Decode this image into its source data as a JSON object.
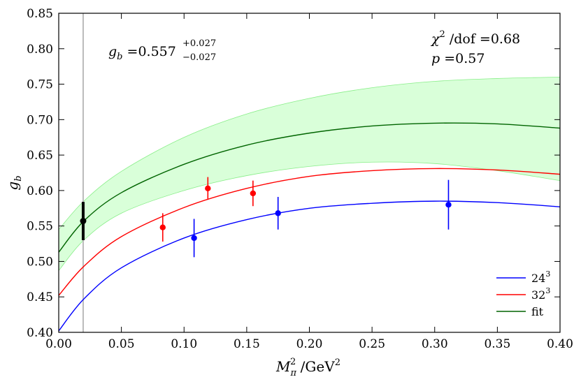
{
  "chart_data": {
    "type": "scatter",
    "xlabel": "M_π² /GeV²",
    "xlabel_parts": {
      "symbol": "M",
      "sub": "π",
      "sup": "2",
      "unit": " /GeV",
      "unit_sup": "2"
    },
    "ylabel": "g_b",
    "ylabel_parts": {
      "symbol": "g",
      "sub": "b"
    },
    "xlim": [
      0.0,
      0.4
    ],
    "ylim": [
      0.4,
      0.85
    ],
    "x_ticks": [
      0.0,
      0.05,
      0.1,
      0.15,
      0.2,
      0.25,
      0.3,
      0.35,
      0.4
    ],
    "x_tick_labels": [
      "0.00",
      "0.05",
      "0.10",
      "0.15",
      "0.20",
      "0.25",
      "0.30",
      "0.35",
      "0.40"
    ],
    "y_ticks": [
      0.4,
      0.45,
      0.5,
      0.55,
      0.6,
      0.65,
      0.7,
      0.75,
      0.8,
      0.85
    ],
    "y_tick_labels": [
      "0.40",
      "0.45",
      "0.50",
      "0.55",
      "0.60",
      "0.65",
      "0.70",
      "0.75",
      "0.80",
      "0.85"
    ],
    "physical_point_x": 0.0195,
    "physical_point": {
      "x": 0.0195,
      "y": 0.557,
      "err_up": 0.027,
      "err_down": 0.027,
      "color": "#000000"
    },
    "series": [
      {
        "name": "24³",
        "legend_base": "24",
        "legend_sup": "3",
        "color": "#0000ff",
        "points": [
          {
            "x": 0.108,
            "y": 0.533,
            "err": 0.027
          },
          {
            "x": 0.175,
            "y": 0.568,
            "err": 0.023
          },
          {
            "x": 0.311,
            "y": 0.58,
            "err": 0.035
          }
        ],
        "curve": {
          "x": [
            0.0,
            0.02,
            0.05,
            0.1,
            0.15,
            0.2,
            0.25,
            0.3,
            0.35,
            0.4
          ],
          "y": [
            0.402,
            0.447,
            0.491,
            0.533,
            0.559,
            0.575,
            0.582,
            0.585,
            0.583,
            0.577
          ]
        }
      },
      {
        "name": "32³",
        "legend_base": "32",
        "legend_sup": "3",
        "color": "#ff0000",
        "points": [
          {
            "x": 0.083,
            "y": 0.548,
            "err": 0.02
          },
          {
            "x": 0.119,
            "y": 0.603,
            "err": 0.016
          },
          {
            "x": 0.155,
            "y": 0.596,
            "err": 0.018
          }
        ],
        "curve": {
          "x": [
            0.0,
            0.02,
            0.05,
            0.1,
            0.15,
            0.2,
            0.25,
            0.3,
            0.35,
            0.4
          ],
          "y": [
            0.452,
            0.493,
            0.535,
            0.576,
            0.603,
            0.62,
            0.628,
            0.631,
            0.629,
            0.623
          ]
        }
      },
      {
        "name": "fit",
        "legend_base": "fit",
        "legend_sup": "",
        "color": "#006400",
        "points": [],
        "curve": {
          "x": [
            0.0,
            0.02,
            0.05,
            0.1,
            0.15,
            0.2,
            0.25,
            0.3,
            0.35,
            0.4
          ],
          "y": [
            0.513,
            0.557,
            0.597,
            0.637,
            0.664,
            0.681,
            0.691,
            0.695,
            0.694,
            0.688
          ]
        },
        "band_upper": [
          0.545,
          0.585,
          0.627,
          0.675,
          0.708,
          0.73,
          0.745,
          0.754,
          0.758,
          0.76
        ],
        "band_lower": [
          0.487,
          0.53,
          0.568,
          0.6,
          0.621,
          0.634,
          0.64,
          0.638,
          0.628,
          0.614
        ]
      }
    ],
    "band_color": "#ccffcc",
    "band_edge_color": "#88ee88",
    "annotations": {
      "gb_symbol": "g",
      "gb_sub": "b",
      "gb_value": " =0.557",
      "gb_err_up": "+0.027",
      "gb_err_down": "−0.027",
      "chi_symbol": "χ",
      "chi_sup": "2",
      "chi_rest": " /dof =0.68",
      "p_text": "p",
      "p_value": " =0.57"
    },
    "legend_position": "lower-right"
  }
}
